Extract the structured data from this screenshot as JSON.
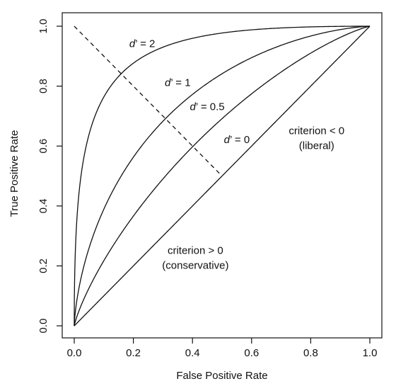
{
  "chart_data": {
    "type": "line",
    "title": "",
    "xlabel": "False Positive Rate",
    "ylabel": "True Positive Rate",
    "xlim": [
      0,
      1
    ],
    "ylim": [
      0,
      1
    ],
    "x_ticks": [
      0.0,
      0.2,
      0.4,
      0.6,
      0.8,
      1.0
    ],
    "y_ticks": [
      0.0,
      0.2,
      0.4,
      0.6,
      0.8,
      1.0
    ],
    "x_tick_labels": [
      "0.0",
      "0.2",
      "0.4",
      "0.6",
      "0.8",
      "1.0"
    ],
    "y_tick_labels": [
      "0.0",
      "0.2",
      "0.4",
      "0.6",
      "0.8",
      "1.0"
    ],
    "grid": false,
    "legend": "none",
    "series": [
      {
        "name": "d' = 2",
        "d_prime": 2
      },
      {
        "name": "d' = 1",
        "d_prime": 1
      },
      {
        "name": "d' = 0.5",
        "d_prime": 0.5
      },
      {
        "name": "d' = 0",
        "d_prime": 0
      }
    ],
    "reference_line": {
      "style": "dashed",
      "x": [
        0.0,
        0.5
      ],
      "y": [
        1.0,
        0.5
      ]
    },
    "annotations": [
      {
        "text": "d' = 2",
        "x": 0.23,
        "y": 0.93
      },
      {
        "text": "d' = 1",
        "x": 0.35,
        "y": 0.8
      },
      {
        "text": "d' = 0.5",
        "x": 0.45,
        "y": 0.72
      },
      {
        "text": "d' = 0",
        "x": 0.55,
        "y": 0.61
      },
      {
        "text": "criterion < 0",
        "x": 0.82,
        "y": 0.64
      },
      {
        "text": "(liberal)",
        "x": 0.82,
        "y": 0.59
      },
      {
        "text": "criterion > 0",
        "x": 0.41,
        "y": 0.24
      },
      {
        "text": "(conservative)",
        "x": 0.41,
        "y": 0.19
      }
    ]
  }
}
